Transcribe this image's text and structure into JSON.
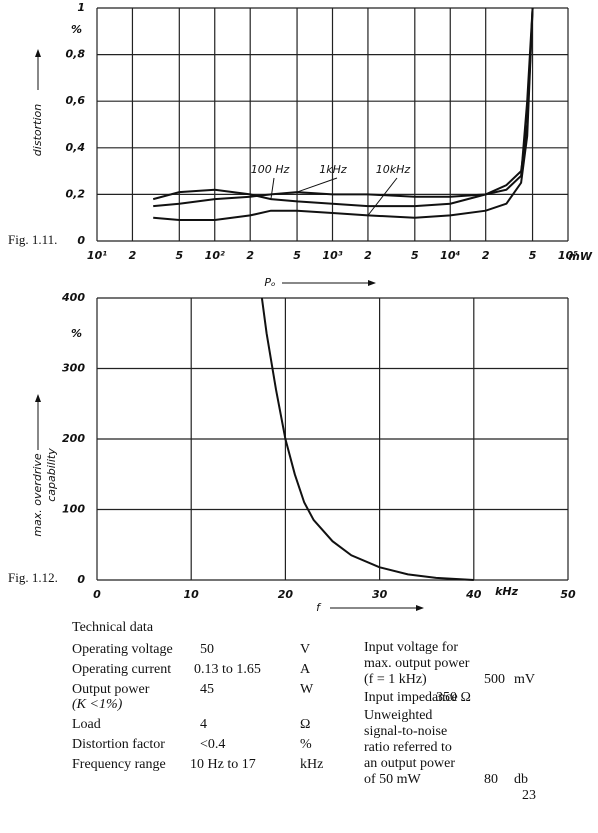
{
  "chart_data": [
    {
      "type": "line",
      "log_x": true,
      "y_label": "distortion",
      "x_label": "Pₒ",
      "y_unit": "%",
      "x_unit": "mW",
      "x": [
        30,
        50,
        100,
        200,
        300,
        500,
        1000,
        2000,
        5000,
        10000,
        20000,
        30000,
        40000,
        45000,
        50000
      ],
      "series": [
        {
          "name": "100 Hz",
          "color": "#111111",
          "values": [
            0.18,
            0.21,
            0.22,
            0.2,
            0.18,
            0.17,
            0.16,
            0.15,
            0.15,
            0.16,
            0.2,
            0.24,
            0.3,
            0.5,
            1.0
          ]
        },
        {
          "name": "1kHz",
          "color": "#111111",
          "values": [
            0.15,
            0.16,
            0.18,
            0.19,
            0.2,
            0.21,
            0.2,
            0.2,
            0.19,
            0.19,
            0.2,
            0.22,
            0.28,
            0.6,
            1.0
          ]
        },
        {
          "name": "10kHz",
          "color": "#111111",
          "values": [
            0.1,
            0.09,
            0.09,
            0.11,
            0.13,
            0.13,
            0.12,
            0.11,
            0.1,
            0.11,
            0.13,
            0.16,
            0.25,
            0.45,
            1.0
          ]
        }
      ],
      "xlim": [
        10,
        100000
      ],
      "xticks": [
        {
          "value": 10,
          "label": "10¹"
        },
        {
          "value": 20,
          "label": "2"
        },
        {
          "value": 50,
          "label": "5"
        },
        {
          "value": 100,
          "label": "10²"
        },
        {
          "value": 200,
          "label": "2"
        },
        {
          "value": 500,
          "label": "5"
        },
        {
          "value": 1000,
          "label": "10³"
        },
        {
          "value": 2000,
          "label": "2"
        },
        {
          "value": 5000,
          "label": "5"
        },
        {
          "value": 10000,
          "label": "10⁴"
        },
        {
          "value": 20000,
          "label": "2"
        },
        {
          "value": 50000,
          "label": "5"
        },
        {
          "value": 100000,
          "label": "10⁵"
        }
      ],
      "ylim": [
        0,
        1
      ],
      "yticks": [
        0,
        {
          "value": 0.2,
          "label": "0,2"
        },
        {
          "value": 0.4,
          "label": "0,4"
        },
        {
          "value": 0.6,
          "label": "0,6"
        },
        {
          "value": 0.8,
          "label": "0,8"
        },
        1
      ],
      "grid": true
    },
    {
      "type": "line",
      "log_x": false,
      "y_label": [
        "max. overdrive",
        "capability"
      ],
      "x_label": "f",
      "y_unit": "%",
      "x_unit": "kHz",
      "x": [
        17.5,
        18,
        19,
        20,
        21,
        22,
        23,
        25,
        27,
        30,
        33,
        36,
        40
      ],
      "values": [
        400,
        350,
        270,
        200,
        150,
        110,
        85,
        55,
        35,
        18,
        8,
        3,
        0
      ],
      "color": "#111111",
      "xlim": [
        0,
        50
      ],
      "xticks": [
        0,
        10,
        20,
        30,
        40,
        50
      ],
      "ylim": [
        0,
        400
      ],
      "yticks": [
        0,
        100,
        200,
        300,
        400
      ],
      "grid": true
    }
  ],
  "figure_labels": [
    "Fig. 1.11.",
    "Fig. 1.12."
  ],
  "technical_data": {
    "title": "Technical data",
    "left_rows": [
      {
        "label": "Operating voltage",
        "value": "50",
        "unit": "V"
      },
      {
        "label": "Operating current",
        "value": "0.13 to 1.65",
        "unit": "A"
      },
      {
        "label": "Output power",
        "note": "(K <1%)",
        "value": "45",
        "unit": "W"
      },
      {
        "label": "Load",
        "value": "4",
        "unit": "Ω"
      },
      {
        "label": "Distortion factor",
        "value": "<0.4",
        "unit": "%"
      },
      {
        "label": "Frequency range",
        "value": "10 Hz to 17",
        "unit": "kHz"
      }
    ],
    "right_rows": [
      {
        "label_lines": [
          "Input voltage for",
          "max. output power",
          "(f = 1 kHz)"
        ],
        "value": "500",
        "unit": "mV"
      },
      {
        "label_lines": [
          "Input impedance"
        ],
        "value": "350 Ω"
      },
      {
        "label_lines": [
          "Unweighted",
          "signal-to-noise",
          "ratio referred to",
          "an output power",
          "of 50 mW"
        ],
        "value": "80",
        "unit": "db"
      }
    ]
  },
  "page_number": "23"
}
